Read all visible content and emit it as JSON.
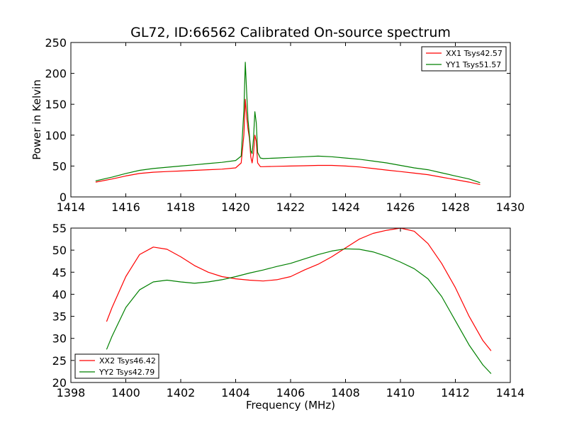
{
  "figure": {
    "title": "GL72, ID:66562 Calibrated On-source spectrum"
  },
  "chart_data": [
    {
      "type": "line",
      "title": "GL72, ID:66562 Calibrated On-source spectrum",
      "xlabel": "",
      "ylabel": "Power in Kelvin",
      "xlim": [
        1414,
        1430
      ],
      "ylim": [
        0,
        250
      ],
      "xticks": [
        1414,
        1416,
        1418,
        1420,
        1422,
        1424,
        1426,
        1428,
        1430
      ],
      "yticks": [
        0,
        50,
        100,
        150,
        200,
        250
      ],
      "grid": false,
      "legend_position": "top-right",
      "series": [
        {
          "name": "XX1 Tsys42.57",
          "color": "#ff0000",
          "x": [
            1414.9,
            1415.5,
            1416.0,
            1416.5,
            1417.0,
            1417.5,
            1418.0,
            1418.5,
            1419.0,
            1419.5,
            1420.0,
            1420.2,
            1420.3,
            1420.35,
            1420.4,
            1420.45,
            1420.5,
            1420.55,
            1420.6,
            1420.65,
            1420.7,
            1420.75,
            1420.8,
            1420.9,
            1421.0,
            1421.5,
            1422.0,
            1422.5,
            1423.0,
            1423.5,
            1424.0,
            1424.5,
            1425.0,
            1425.5,
            1426.0,
            1426.5,
            1427.0,
            1427.5,
            1428.0,
            1428.5,
            1428.9
          ],
          "values": [
            24,
            29,
            34,
            38,
            40,
            41,
            42,
            43,
            44,
            45,
            47,
            55,
            100,
            158,
            130,
            110,
            95,
            65,
            55,
            70,
            100,
            90,
            55,
            49,
            49,
            49.5,
            50,
            50.5,
            51,
            51,
            50,
            48.5,
            46,
            43.5,
            41,
            38.5,
            36,
            32,
            28,
            24,
            20
          ]
        },
        {
          "name": "YY1 Tsys51.57",
          "color": "#008000",
          "x": [
            1414.9,
            1415.5,
            1416.0,
            1416.5,
            1417.0,
            1417.5,
            1418.0,
            1418.5,
            1419.0,
            1419.5,
            1420.0,
            1420.2,
            1420.3,
            1420.35,
            1420.4,
            1420.45,
            1420.5,
            1420.55,
            1420.6,
            1420.65,
            1420.7,
            1420.75,
            1420.8,
            1420.9,
            1421.0,
            1421.5,
            1422.0,
            1422.5,
            1423.0,
            1423.5,
            1424.0,
            1424.5,
            1425.0,
            1425.5,
            1426.0,
            1426.5,
            1427.0,
            1427.5,
            1428.0,
            1428.5,
            1428.9
          ],
          "values": [
            26,
            32,
            38,
            43,
            46,
            48,
            50,
            52,
            54,
            56,
            59,
            66,
            140,
            218,
            170,
            125,
            100,
            75,
            70,
            95,
            138,
            120,
            72,
            63,
            62,
            63,
            64,
            65,
            66,
            65,
            63,
            61,
            58,
            55,
            51,
            47,
            44,
            39,
            34,
            29,
            23
          ]
        }
      ]
    },
    {
      "type": "line",
      "title": "",
      "xlabel": "Frequency (MHz)",
      "ylabel": "",
      "xlim": [
        1398,
        1414
      ],
      "ylim": [
        20,
        55
      ],
      "xticks": [
        1398,
        1400,
        1402,
        1404,
        1406,
        1408,
        1410,
        1412,
        1414
      ],
      "yticks": [
        20,
        25,
        30,
        35,
        40,
        45,
        50,
        55
      ],
      "grid": false,
      "legend_position": "bottom-left",
      "series": [
        {
          "name": "XX2 Tsys46.42",
          "color": "#ff0000",
          "x": [
            1399.3,
            1399.5,
            1400.0,
            1400.5,
            1401.0,
            1401.5,
            1402.0,
            1402.5,
            1403.0,
            1403.5,
            1404.0,
            1404.5,
            1405.0,
            1405.5,
            1406.0,
            1406.5,
            1407.0,
            1407.5,
            1408.0,
            1408.5,
            1409.0,
            1409.5,
            1410.0,
            1410.5,
            1411.0,
            1411.5,
            1412.0,
            1412.5,
            1413.0,
            1413.3
          ],
          "values": [
            33.8,
            37,
            44,
            49,
            50.7,
            50.2,
            48.5,
            46.5,
            45,
            44,
            43.5,
            43.2,
            43,
            43.3,
            44,
            45.5,
            46.8,
            48.5,
            50.5,
            52.5,
            53.8,
            54.5,
            55,
            54.3,
            51.5,
            47,
            41.5,
            35,
            29.5,
            27.2
          ]
        },
        {
          "name": "YY2 Tsys42.79",
          "color": "#008000",
          "x": [
            1399.3,
            1399.5,
            1400.0,
            1400.5,
            1401.0,
            1401.5,
            1402.0,
            1402.5,
            1403.0,
            1403.5,
            1404.0,
            1404.5,
            1405.0,
            1405.5,
            1406.0,
            1406.5,
            1407.0,
            1407.5,
            1408.0,
            1408.5,
            1409.0,
            1409.5,
            1410.0,
            1410.5,
            1411.0,
            1411.5,
            1412.0,
            1412.5,
            1413.0,
            1413.3
          ],
          "values": [
            27.5,
            30.5,
            37,
            41,
            42.8,
            43.2,
            42.8,
            42.5,
            42.8,
            43.3,
            44,
            44.8,
            45.5,
            46.3,
            47,
            48,
            49,
            49.8,
            50.3,
            50.2,
            49.6,
            48.6,
            47.3,
            45.8,
            43.5,
            39.5,
            34,
            28.5,
            24,
            22
          ]
        }
      ]
    }
  ]
}
